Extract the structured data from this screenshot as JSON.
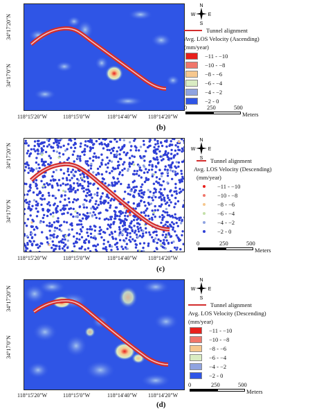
{
  "north_arrow": {
    "n": "N",
    "s": "S",
    "e": "E",
    "w": "W"
  },
  "colors": {
    "map_background": "#2f55e6",
    "tunnel": "#d22c2c",
    "classes": [
      "#e8201c",
      "#f0766a",
      "#f6c78e",
      "#d9ecc2",
      "#8fa3e0",
      "#2f55e6"
    ]
  },
  "panels": [
    {
      "label": "(b)",
      "lat_labels": [
        "34°17'20\"N",
        "34°17'0\"N"
      ],
      "lon_labels": [
        "118°15'20\"W",
        "118°15'0\"W",
        "118°14'40\"W",
        "118°14'20\"W"
      ],
      "legend": {
        "line_label": "Tunnel alignment",
        "title_line1": "Avg. LOS Velocity (Ascending)",
        "title_line2": "(mm/year)",
        "style": "raster",
        "classes": [
          "−11 - −10",
          "−10 - −8",
          "−8 - −6",
          "−6 - −4",
          "−4 - −2",
          "−2 - 0"
        ]
      },
      "scale": {
        "zero": "0",
        "mid": "250",
        "max": "500",
        "unit": "Meters"
      }
    },
    {
      "label": "(c)",
      "lat_labels": [
        "34°17'20\"N",
        "34°17'0\"N"
      ],
      "lon_labels": [
        "118°15'20\"W",
        "118°15'0\"W",
        "118°14'40\"W",
        "118°14'20\"W"
      ],
      "legend": {
        "line_label": "Tunnel alignment",
        "title_line1": "Avg. LOS Velocity (Descending)",
        "title_line2": "(mm/year)",
        "style": "points",
        "classes": [
          "−11 - −10",
          "−10 - −8",
          "−8 - −6",
          "−6 - −4",
          "−4 - −2",
          "−2 - 0"
        ]
      },
      "scale": {
        "zero": "0",
        "mid": "250",
        "max": "500",
        "unit": "Meters"
      }
    },
    {
      "label": "(d)",
      "lat_labels": [
        "34°17'20\"N",
        "34°17'0\"N"
      ],
      "lon_labels": [
        "118°15'20\"W",
        "118°15'0\"W",
        "118°14'40\"W",
        "118°14'20\"W"
      ],
      "legend": {
        "line_label": "Tunnel alignment",
        "title_line1": "Avg. LOS Velocity (Descending)",
        "title_line2": "(mm/year)",
        "style": "raster",
        "classes": [
          "−11 - −10",
          "−10 - −8",
          "−8 - −6",
          "−6 - −4",
          "−4 - −2",
          "−2 - 0"
        ]
      },
      "scale": {
        "zero": "0",
        "mid": "250",
        "max": "500",
        "unit": "Meters"
      }
    }
  ]
}
